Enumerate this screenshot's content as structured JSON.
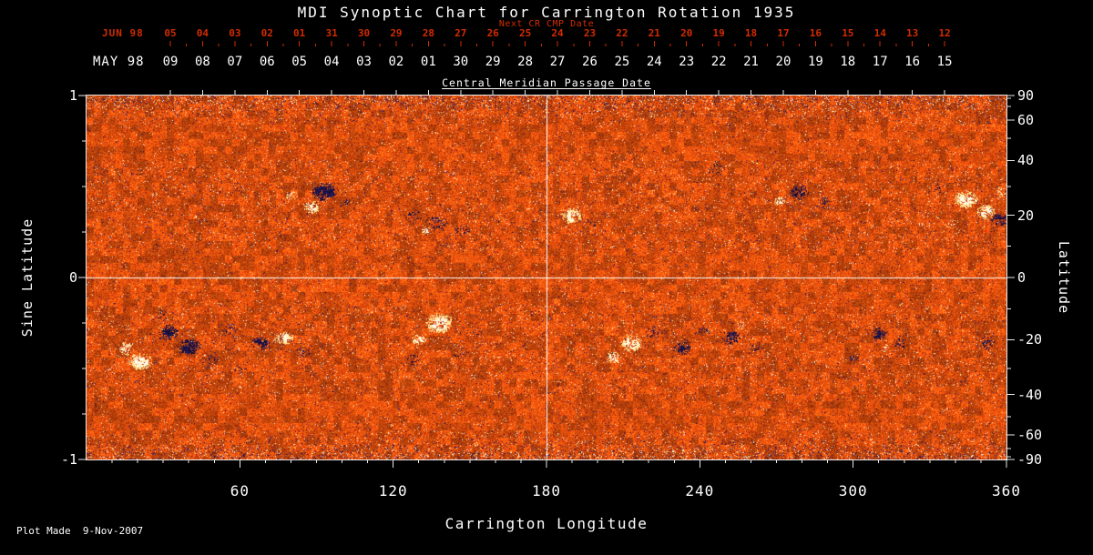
{
  "title": "MDI Synoptic Chart for Carrington Rotation 1935",
  "colors": {
    "background": "#000000",
    "text": "#ffffff",
    "red_axis": "#d22c00",
    "frame": "#e8e8e8",
    "heat_low": "#af2d00",
    "heat_high": "#ff6c12",
    "bright_region": "#fff8dc",
    "dark_region": "#12103e"
  },
  "top_red_axis": {
    "title": "Next CR CMP Date",
    "month": "JUN 98",
    "dates": [
      "05",
      "04",
      "03",
      "02",
      "01",
      "31",
      "30",
      "29",
      "28",
      "27",
      "26",
      "25",
      "24",
      "23",
      "22",
      "21",
      "20",
      "19",
      "18",
      "17",
      "16",
      "15",
      "14",
      "13",
      "12"
    ]
  },
  "top_white_axis": {
    "title": "Central Meridian Passage Date",
    "month": "MAY 98",
    "dates": [
      "09",
      "08",
      "07",
      "06",
      "05",
      "04",
      "03",
      "02",
      "01",
      "30",
      "29",
      "28",
      "27",
      "26",
      "25",
      "24",
      "23",
      "22",
      "21",
      "20",
      "19",
      "18",
      "17",
      "16",
      "15"
    ]
  },
  "bottom_axis": {
    "title": "Carrington Longitude",
    "ticks": [
      60,
      120,
      180,
      240,
      300,
      360
    ]
  },
  "left_axis": {
    "title": "Sine Latitude",
    "ticks": [
      1,
      0,
      -1
    ]
  },
  "right_axis": {
    "title": "Latitude",
    "ticks": [
      90,
      60,
      40,
      20,
      0,
      -20,
      -40,
      -60,
      -90
    ]
  },
  "footer": {
    "plot_made": "Plot Made  9-Nov-2007"
  },
  "chart_data": {
    "type": "heatmap",
    "title": "MDI Synoptic Chart for Carrington Rotation 1935",
    "description": "Solar magnetogram synoptic map: orange noise background with dark (negative polarity) and bright (positive polarity) active regions in two activity bands near +/-20 to 30 degrees latitude.",
    "x_axis": {
      "label": "Carrington Longitude",
      "range": [
        0,
        360
      ],
      "ticks": [
        60,
        120,
        180,
        240,
        300,
        360
      ]
    },
    "y_axis": {
      "label": "Sine Latitude",
      "range": [
        -1,
        1
      ],
      "ticks": [
        1,
        0,
        -1
      ]
    },
    "right_axis_latitude_ticks": [
      90,
      60,
      40,
      20,
      0,
      -20,
      -40,
      -60,
      -90
    ],
    "crosshair": {
      "longitude": 180,
      "sine_latitude": 0
    },
    "noise_seed": 1935,
    "active_regions": [
      [
        93,
        0.47,
        5,
        0.055,
        "neg",
        0.95,
        "blob"
      ],
      [
        88,
        0.39,
        3.5,
        0.04,
        "pos",
        0.75,
        "blob"
      ],
      [
        80,
        0.45,
        2.5,
        0.03,
        "pos",
        0.45,
        "specks"
      ],
      [
        101,
        0.41,
        2.5,
        0.03,
        "neg",
        0.4,
        "specks"
      ],
      [
        128,
        0.34,
        4,
        0.04,
        "neg",
        0.55,
        "specks"
      ],
      [
        137,
        0.3,
        5,
        0.05,
        "neg",
        0.6,
        "specks"
      ],
      [
        147,
        0.26,
        4,
        0.04,
        "neg",
        0.5,
        "specks"
      ],
      [
        133,
        0.26,
        2.5,
        0.025,
        "pos",
        0.5,
        "specks"
      ],
      [
        190,
        0.34,
        4.5,
        0.045,
        "pos",
        0.85,
        "blob"
      ],
      [
        197,
        0.3,
        3,
        0.03,
        "neg",
        0.45,
        "specks"
      ],
      [
        246,
        0.6,
        3.5,
        0.05,
        "neg",
        0.35,
        "specks"
      ],
      [
        279,
        0.47,
        4,
        0.045,
        "neg",
        0.75,
        "blob"
      ],
      [
        288,
        0.41,
        4,
        0.04,
        "neg",
        0.55,
        "specks"
      ],
      [
        271,
        0.42,
        2.5,
        0.03,
        "pos",
        0.55,
        "blob"
      ],
      [
        344,
        0.43,
        5,
        0.05,
        "pos",
        0.85,
        "blob"
      ],
      [
        352,
        0.36,
        4,
        0.045,
        "pos",
        0.8,
        "blob"
      ],
      [
        357,
        0.32,
        3.5,
        0.04,
        "neg",
        0.85,
        "blob"
      ],
      [
        338,
        0.3,
        2.5,
        0.03,
        "pos",
        0.5,
        "specks"
      ],
      [
        334,
        0.49,
        3,
        0.035,
        "neg",
        0.45,
        "specks"
      ],
      [
        358,
        0.47,
        2.5,
        0.03,
        "pos",
        0.5,
        "specks"
      ],
      [
        21,
        -0.46,
        5,
        0.05,
        "pos",
        0.9,
        "blob"
      ],
      [
        15,
        -0.39,
        3.5,
        0.04,
        "pos",
        0.65,
        "blob"
      ],
      [
        32,
        -0.3,
        4,
        0.045,
        "neg",
        0.7,
        "blob"
      ],
      [
        40,
        -0.38,
        5,
        0.05,
        "neg",
        0.75,
        "blob"
      ],
      [
        48,
        -0.46,
        4,
        0.045,
        "neg",
        0.55,
        "specks"
      ],
      [
        29,
        -0.21,
        3,
        0.035,
        "neg",
        0.45,
        "specks"
      ],
      [
        56,
        -0.29,
        3.5,
        0.04,
        "neg",
        0.5,
        "specks"
      ],
      [
        68,
        -0.36,
        4,
        0.04,
        "neg",
        0.7,
        "blob"
      ],
      [
        77,
        -0.33,
        4,
        0.04,
        "pos",
        0.8,
        "blob"
      ],
      [
        85,
        -0.41,
        3,
        0.035,
        "neg",
        0.5,
        "specks"
      ],
      [
        60,
        -0.5,
        3,
        0.03,
        "neg",
        0.4,
        "specks"
      ],
      [
        138,
        -0.25,
        5.5,
        0.06,
        "pos",
        0.95,
        "blob"
      ],
      [
        130,
        -0.34,
        3,
        0.035,
        "pos",
        0.55,
        "blob"
      ],
      [
        127,
        -0.45,
        3.5,
        0.04,
        "neg",
        0.55,
        "specks"
      ],
      [
        146,
        -0.42,
        3,
        0.035,
        "neg",
        0.55,
        "specks"
      ],
      [
        153,
        -0.3,
        2.5,
        0.03,
        "neg",
        0.45,
        "specks"
      ],
      [
        213,
        -0.36,
        4.5,
        0.05,
        "pos",
        0.9,
        "blob"
      ],
      [
        206,
        -0.44,
        3,
        0.035,
        "pos",
        0.6,
        "blob"
      ],
      [
        222,
        -0.3,
        3.5,
        0.04,
        "neg",
        0.6,
        "specks"
      ],
      [
        233,
        -0.38,
        4,
        0.045,
        "neg",
        0.7,
        "blob"
      ],
      [
        241,
        -0.29,
        3,
        0.035,
        "neg",
        0.5,
        "specks"
      ],
      [
        252,
        -0.33,
        4,
        0.04,
        "neg",
        0.7,
        "blob"
      ],
      [
        262,
        -0.38,
        3,
        0.035,
        "neg",
        0.5,
        "specks"
      ],
      [
        256,
        -0.26,
        2.5,
        0.03,
        "pos",
        0.4,
        "specks"
      ],
      [
        310,
        -0.31,
        3.5,
        0.04,
        "neg",
        0.7,
        "blob"
      ],
      [
        318,
        -0.36,
        3,
        0.035,
        "neg",
        0.5,
        "specks"
      ],
      [
        312,
        -0.38,
        2,
        0.025,
        "pos",
        0.5,
        "specks"
      ],
      [
        352,
        -0.36,
        3.5,
        0.04,
        "neg",
        0.6,
        "specks"
      ],
      [
        300,
        -0.45,
        2.5,
        0.03,
        "neg",
        0.4,
        "specks"
      ]
    ]
  }
}
